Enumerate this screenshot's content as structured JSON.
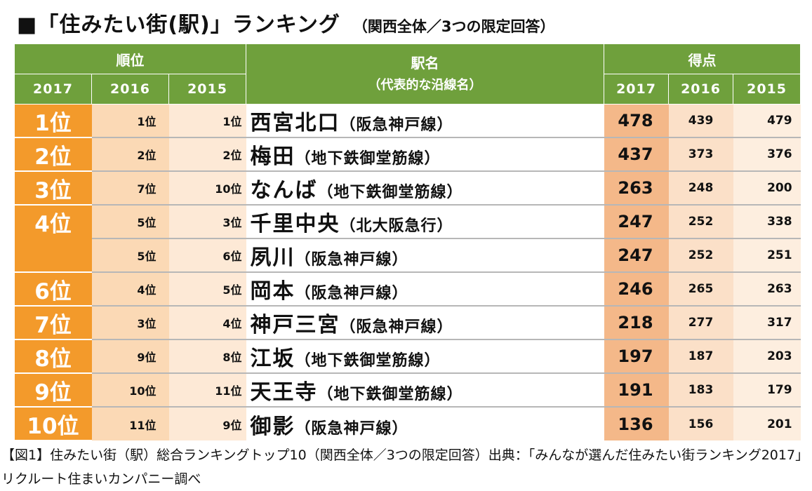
{
  "title": {
    "main": "■「住みたい街(駅)」ランキング",
    "sub": "（関西全体／3つの限定回答）"
  },
  "table": {
    "header": {
      "rank_group": "順位",
      "station_label": "駅名",
      "station_sub": "（代表的な沿線名）",
      "score_group": "得点",
      "rank_years": [
        "2017",
        "2016",
        "2015"
      ],
      "score_years": [
        "2017",
        "2016",
        "2015"
      ]
    },
    "rows": [
      {
        "rank2017": "1位",
        "rank2016": "1位",
        "rank2015": "1位",
        "station": "西宮北口",
        "line": "（阪急神戸線）",
        "score2017": "478",
        "score2016": "439",
        "score2015": "479"
      },
      {
        "rank2017": "2位",
        "rank2016": "2位",
        "rank2015": "2位",
        "station": "梅田",
        "line": "（地下鉄御堂筋線）",
        "score2017": "437",
        "score2016": "373",
        "score2015": "376"
      },
      {
        "rank2017": "3位",
        "rank2016": "7位",
        "rank2015": "10位",
        "station": "なんば",
        "line": "（地下鉄御堂筋線）",
        "score2017": "263",
        "score2016": "248",
        "score2015": "200"
      },
      {
        "rank2017": "4位",
        "rank2016": "5位",
        "rank2015": "3位",
        "station": "千里中央",
        "line": "（北大阪急行）",
        "score2017": "247",
        "score2016": "252",
        "score2015": "338"
      },
      {
        "rank2017": "",
        "rank2016": "5位",
        "rank2015": "6位",
        "station": "夙川",
        "line": "（阪急神戸線）",
        "score2017": "247",
        "score2016": "252",
        "score2015": "251"
      },
      {
        "rank2017": "6位",
        "rank2016": "4位",
        "rank2015": "5位",
        "station": "岡本",
        "line": "（阪急神戸線）",
        "score2017": "246",
        "score2016": "265",
        "score2015": "263"
      },
      {
        "rank2017": "7位",
        "rank2016": "3位",
        "rank2015": "4位",
        "station": "神戸三宮",
        "line": "（阪急神戸線）",
        "score2017": "218",
        "score2016": "277",
        "score2015": "317"
      },
      {
        "rank2017": "8位",
        "rank2016": "9位",
        "rank2015": "8位",
        "station": "江坂",
        "line": "（地下鉄御堂筋線）",
        "score2017": "197",
        "score2016": "187",
        "score2015": "203"
      },
      {
        "rank2017": "9位",
        "rank2016": "10位",
        "rank2015": "11位",
        "station": "天王寺",
        "line": "（地下鉄御堂筋線）",
        "score2017": "191",
        "score2016": "183",
        "score2015": "179"
      },
      {
        "rank2017": "10位",
        "rank2016": "11位",
        "rank2015": "9位",
        "station": "御影",
        "line": "（阪急神戸線）",
        "score2017": "136",
        "score2016": "156",
        "score2015": "201"
      }
    ]
  },
  "caption": "【図1】住みたい街（駅）総合ランキングトップ10（関西全体／3つの限定回答）出典：「みんなが選んだ住みたい街ランキング2017」リクルート住まいカンパニー調べ",
  "colors": {
    "header_green": "#6fa03c",
    "rank2017_orange": "#f39a2b",
    "score2017_peach": "#f4b889",
    "light_peach": "#fde9d6"
  }
}
